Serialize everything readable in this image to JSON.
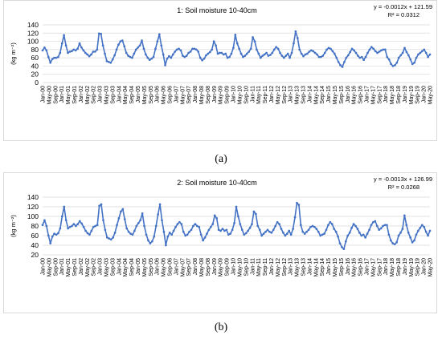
{
  "chart_data": [
    {
      "panel_label": "(a)",
      "type": "line",
      "title": "1: Soil moisture 10-40cm",
      "ylabel": "(kg m⁻²)",
      "ylim": [
        0,
        140
      ],
      "yticks": [
        0,
        20,
        40,
        60,
        80,
        100,
        120,
        140
      ],
      "grid": true,
      "color": "#4472C4",
      "trendline": {
        "equation": "y = -0.0012x + 121.59",
        "r2": "R² = 0.0312"
      },
      "x_start": "2000-01",
      "x_end": "2020-05",
      "xticks": [
        "Jan-00",
        "May-00",
        "Sep-00",
        "Jan-01",
        "May-01",
        "Sep-01",
        "Jan-02",
        "May-02",
        "Sep-02",
        "Jan-03",
        "May-03",
        "Sep-03",
        "Jan-04",
        "May-04",
        "Sep-04",
        "Jan-05",
        "May-05",
        "Sep-05",
        "Jan-06",
        "May-06",
        "Sep-06",
        "Jan-07",
        "May-07",
        "Sep-07",
        "Jan-08",
        "May-08",
        "Sep-08",
        "Jan-09",
        "May-09",
        "Sep-09",
        "Jan-10",
        "May-10",
        "Sep-10",
        "Jan-11",
        "May-11",
        "Sep-11",
        "Jan-12",
        "May-12",
        "Sep-12",
        "Jan-13",
        "May-13",
        "Sep-13",
        "Jan-14",
        "May-14",
        "Sep-14",
        "Jan-15",
        "May-15",
        "Sep-15",
        "Jan-16",
        "May-16",
        "Sep-16",
        "Jan-17",
        "May-17",
        "Sep-17",
        "Jan-18",
        "May-18",
        "Sep-18",
        "Jan-19",
        "May-19",
        "Sep-19",
        "Jan-20",
        "May-20"
      ],
      "values": [
        78,
        85,
        78,
        62,
        48,
        57,
        60,
        60,
        62,
        72,
        95,
        115,
        90,
        72,
        75,
        76,
        80,
        78,
        82,
        95,
        85,
        78,
        72,
        68,
        64,
        68,
        75,
        75,
        80,
        119,
        118,
        90,
        70,
        52,
        50,
        48,
        56,
        66,
        80,
        92,
        100,
        102,
        88,
        72,
        65,
        62,
        60,
        70,
        80,
        85,
        90,
        102,
        82,
        68,
        60,
        55,
        58,
        62,
        82,
        100,
        117,
        90,
        68,
        42,
        58,
        64,
        60,
        68,
        75,
        80,
        82,
        78,
        65,
        62,
        65,
        72,
        75,
        82,
        82,
        80,
        75,
        60,
        54,
        58,
        66,
        70,
        74,
        80,
        100,
        90,
        70,
        72,
        72,
        68,
        70,
        60,
        62,
        70,
        84,
        116,
        95,
        82,
        70,
        62,
        65,
        70,
        75,
        82,
        110,
        100,
        80,
        70,
        60,
        65,
        68,
        72,
        65,
        67,
        72,
        80,
        86,
        82,
        72,
        65,
        60,
        65,
        70,
        60,
        72,
        95,
        124,
        108,
        80,
        70,
        64,
        68,
        70,
        75,
        78,
        76,
        72,
        68,
        62,
        62,
        65,
        72,
        80,
        84,
        82,
        76,
        70,
        60,
        50,
        42,
        38,
        50,
        60,
        66,
        74,
        82,
        78,
        72,
        65,
        60,
        62,
        55,
        62,
        72,
        80,
        86,
        82,
        76,
        72,
        75,
        78,
        80,
        80,
        62,
        56,
        45,
        40,
        42,
        48,
        60,
        66,
        72,
        84,
        74,
        66,
        56,
        45,
        48,
        60,
        68,
        72,
        76,
        80,
        72,
        62,
        68
      ]
    },
    {
      "panel_label": "(b)",
      "type": "line",
      "title": "2: Soil moisture 10-40cm",
      "ylabel": "(kg m⁻²)",
      "ylim": [
        20,
        140
      ],
      "yticks": [
        20,
        40,
        60,
        80,
        100,
        120,
        140
      ],
      "grid": true,
      "color": "#4472C4",
      "trendline": {
        "equation": "y = -0.0013x + 126.99",
        "r2": "R² = 0.0268"
      },
      "x_start": "2000-01",
      "x_end": "2020-05",
      "xticks": [
        "Jan-00",
        "May-00",
        "Sep-00",
        "Jan-01",
        "May-01",
        "Sep-01",
        "Jan-02",
        "May-02",
        "Sep-02",
        "Jan-03",
        "May-03",
        "Sep-03",
        "Jan-04",
        "May-04",
        "Sep-04",
        "Jan-05",
        "May-05",
        "Sep-05",
        "Jan-06",
        "May-06",
        "Sep-06",
        "Jan-07",
        "May-07",
        "Sep-07",
        "Jan-08",
        "May-08",
        "Sep-08",
        "Jan-09",
        "May-09",
        "Sep-09",
        "Jan-10",
        "May-10",
        "Sep-10",
        "Jan-11",
        "May-11",
        "Sep-11",
        "Jan-12",
        "May-12",
        "Sep-12",
        "Jan-13",
        "May-13",
        "Sep-13",
        "Jan-14",
        "May-14",
        "Sep-14",
        "Jan-15",
        "May-15",
        "Sep-15",
        "Jan-16",
        "May-16",
        "Sep-16",
        "Jan-17",
        "May-17",
        "Sep-17",
        "Jan-18",
        "May-18",
        "Sep-18",
        "Jan-19",
        "May-19",
        "Sep-19",
        "Jan-20",
        "May-20"
      ],
      "values": [
        82,
        92,
        80,
        60,
        44,
        58,
        64,
        62,
        65,
        75,
        100,
        120,
        92,
        75,
        78,
        80,
        84,
        80,
        84,
        90,
        85,
        78,
        70,
        65,
        62,
        70,
        78,
        80,
        82,
        122,
        125,
        92,
        72,
        56,
        54,
        52,
        56,
        66,
        82,
        96,
        110,
        115,
        94,
        75,
        68,
        64,
        62,
        70,
        80,
        86,
        92,
        106,
        80,
        62,
        50,
        44,
        48,
        58,
        80,
        104,
        125,
        92,
        68,
        40,
        58,
        66,
        62,
        70,
        78,
        84,
        88,
        84,
        68,
        60,
        62,
        68,
        72,
        80,
        84,
        80,
        78,
        62,
        50,
        56,
        64,
        72,
        78,
        84,
        102,
        96,
        72,
        70,
        74,
        70,
        72,
        62,
        64,
        72,
        86,
        120,
        100,
        84,
        72,
        62,
        65,
        70,
        76,
        84,
        110,
        105,
        80,
        72,
        60,
        64,
        68,
        72,
        68,
        66,
        72,
        80,
        88,
        84,
        74,
        66,
        60,
        64,
        70,
        62,
        74,
        98,
        128,
        124,
        82,
        68,
        64,
        68,
        72,
        78,
        80,
        78,
        74,
        68,
        60,
        62,
        64,
        72,
        82,
        88,
        84,
        74,
        68,
        58,
        44,
        36,
        32,
        48,
        60,
        66,
        76,
        84,
        80,
        74,
        66,
        60,
        62,
        56,
        64,
        72,
        82,
        88,
        90,
        80,
        72,
        75,
        80,
        82,
        82,
        62,
        50,
        44,
        42,
        46,
        60,
        66,
        74,
        102,
        82,
        66,
        56,
        46,
        50,
        62,
        70,
        76,
        82,
        78,
        68,
        60,
        70
      ]
    }
  ]
}
